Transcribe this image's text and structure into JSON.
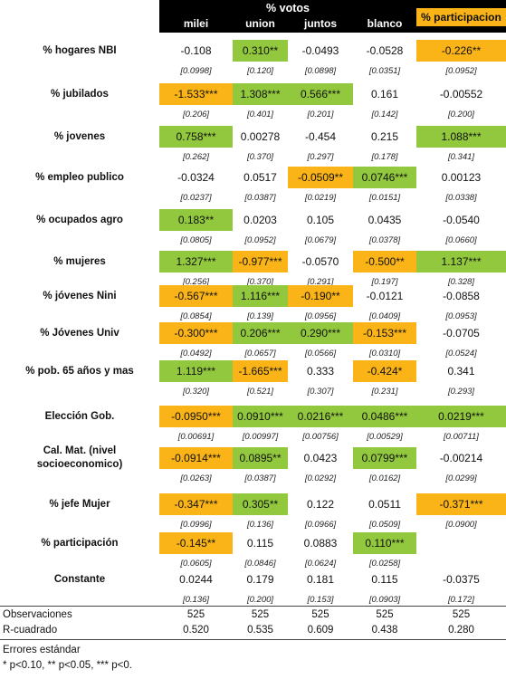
{
  "header": {
    "group_label": "% votos",
    "columns": [
      "milei",
      "union",
      "juntos",
      "blanco",
      "% participacion"
    ]
  },
  "rows": [
    {
      "label": "% hogares NBI",
      "coefs": [
        "-0.108",
        "0.310**",
        "-0.0493",
        "-0.0528",
        "-0.226**"
      ],
      "ses": [
        "[0.0998]",
        "[0.120]",
        "[0.0898]",
        "[0.0351]",
        "[0.0952]"
      ],
      "colors": [
        "",
        "green",
        "",
        "",
        "orange"
      ]
    },
    {
      "label": "% jubilados",
      "coefs": [
        "-1.533***",
        "1.308***",
        "0.566***",
        "0.161",
        "-0.00552"
      ],
      "ses": [
        "[0.206]",
        "[0.401]",
        "[0.201]",
        "[0.142]",
        "[0.200]"
      ],
      "colors": [
        "orange",
        "green",
        "green",
        "",
        ""
      ]
    },
    {
      "label": "% jovenes",
      "coefs": [
        "0.758***",
        "0.00278",
        "-0.454",
        "0.215",
        "1.088***"
      ],
      "ses": [
        "[0.262]",
        "[0.370]",
        "[0.297]",
        "[0.178]",
        "[0.341]"
      ],
      "colors": [
        "green",
        "",
        "",
        "",
        "green"
      ]
    },
    {
      "label": "% empleo publico",
      "coefs": [
        "-0.0324",
        "0.0517",
        "-0.0509**",
        "0.0746***",
        "0.00123"
      ],
      "ses": [
        "[0.0237]",
        "[0.0387]",
        "[0.0219]",
        "[0.0151]",
        "[0.0338]"
      ],
      "colors": [
        "",
        "",
        "orange",
        "green",
        ""
      ]
    },
    {
      "label": "% ocupados agro",
      "coefs": [
        "0.183**",
        "0.0203",
        "0.105",
        "0.0435",
        "-0.0540"
      ],
      "ses": [
        "[0.0805]",
        "[0.0952]",
        "[0.0679]",
        "[0.0378]",
        "[0.0660]"
      ],
      "colors": [
        "green",
        "",
        "",
        "",
        ""
      ]
    },
    {
      "label": "% mujeres",
      "coefs": [
        "1.327***",
        "-0.977***",
        "-0.0570",
        "-0.500**",
        "1.137***"
      ],
      "ses": [
        "[0.256]",
        "[0.370]",
        "[0.291]",
        "[0.197]",
        "[0.328]"
      ],
      "colors": [
        "green",
        "orange",
        "",
        "orange",
        "green"
      ]
    },
    {
      "label": "% jóvenes Nini",
      "coefs": [
        "-0.567***",
        "1.116***",
        "-0.190**",
        "-0.0121",
        "-0.0858"
      ],
      "ses": [
        "[0.0854]",
        "[0.139]",
        "[0.0956]",
        "[0.0409]",
        "[0.0953]"
      ],
      "colors": [
        "orange",
        "green",
        "orange",
        "",
        ""
      ]
    },
    {
      "label": "% Jóvenes Univ",
      "coefs": [
        "-0.300***",
        "0.206***",
        "0.290***",
        "-0.153***",
        "-0.0705"
      ],
      "ses": [
        "[0.0492]",
        "[0.0657]",
        "[0.0566]",
        "[0.0310]",
        "[0.0524]"
      ],
      "colors": [
        "orange",
        "green",
        "green",
        "orange",
        ""
      ]
    },
    {
      "label": "% pob. 65 años y mas",
      "coefs": [
        "1.119***",
        "-1.665***",
        "0.333",
        "-0.424*",
        "0.341"
      ],
      "ses": [
        "[0.320]",
        "[0.521]",
        "[0.307]",
        "[0.231]",
        "[0.293]"
      ],
      "colors": [
        "green",
        "orange",
        "",
        "orange",
        ""
      ]
    },
    {
      "label": "Elección Gob.",
      "coefs": [
        "-0.0950***",
        "0.0910***",
        "0.0216***",
        "0.0486***",
        "0.0219***"
      ],
      "ses": [
        "[0.00691]",
        "[0.00997]",
        "[0.00756]",
        "[0.00529]",
        "[0.00711]"
      ],
      "colors": [
        "orange",
        "green",
        "green",
        "green",
        "green"
      ]
    },
    {
      "label_lines": [
        "Cal. Mat. (nivel",
        "socioeconomico)"
      ],
      "coefs": [
        "-0.0914***",
        "0.0895**",
        "0.0423",
        "0.0799***",
        "-0.00214"
      ],
      "ses": [
        "[0.0263]",
        "[0.0387]",
        "[0.0292]",
        "[0.0162]",
        "[0.0299]"
      ],
      "colors": [
        "orange",
        "green",
        "",
        "green",
        ""
      ]
    },
    {
      "label": "% jefe Mujer",
      "coefs": [
        "-0.347***",
        "0.305**",
        "0.122",
        "0.0511",
        "-0.371***"
      ],
      "ses": [
        "[0.0996]",
        "[0.136]",
        "[0.0966]",
        "[0.0509]",
        "[0.0900]"
      ],
      "colors": [
        "orange",
        "green",
        "",
        "",
        "orange"
      ]
    },
    {
      "label": "% participación",
      "coefs": [
        "-0.145**",
        "0.115",
        "0.0883",
        "0.110***",
        ""
      ],
      "ses": [
        "[0.0605]",
        "[0.0846]",
        "[0.0624]",
        "[0.0258]",
        ""
      ],
      "colors": [
        "orange",
        "",
        "",
        "green",
        ""
      ]
    },
    {
      "label": "Constante",
      "coefs": [
        "0.0244",
        "0.179",
        "0.181",
        "0.115",
        "-0.0375"
      ],
      "ses": [
        "[0.136]",
        "[0.200]",
        "[0.153]",
        "[0.0903]",
        "[0.172]"
      ],
      "colors": [
        "",
        "",
        "",
        "",
        ""
      ]
    }
  ],
  "footer": {
    "observaciones_label": "Observaciones",
    "observaciones": [
      "525",
      "525",
      "525",
      "525",
      "525"
    ],
    "r2_label": "R-cuadrado",
    "r2": [
      "0.520",
      "0.535",
      "0.609",
      "0.438",
      "0.280"
    ],
    "note1": "Errores estándar",
    "note2": "* p<0.10, ** p<0.05, *** p<0."
  },
  "colors": {
    "positive_significant": "#92c83e",
    "negative_significant": "#fbb417",
    "header_background": "#000000"
  }
}
